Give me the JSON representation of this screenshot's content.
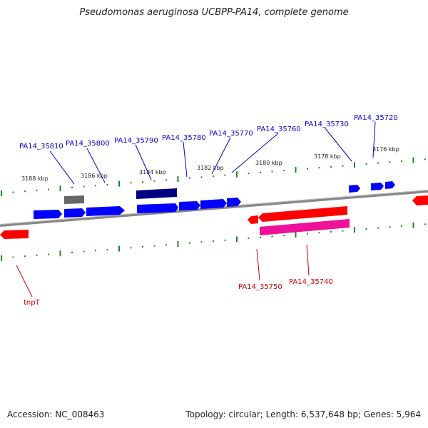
{
  "title": "Pseudomonas aeruginosa UCBPP-PA14, complete genome",
  "footer": {
    "accession": "Accession: NC_008463",
    "summary": "Topology: circular; Length: 6,537,648 bp; Genes: 5,964"
  },
  "colors": {
    "forward_gene": "#0000ff",
    "forward_dark": "#000080",
    "forward_grey": "#666666",
    "reverse_gene": "#ff0000",
    "reverse_pink": "#ee1199",
    "backbone": "#888888",
    "ticks": "#1a8c1a",
    "label_forward": "#0000cc",
    "label_reverse": "#cc0000"
  },
  "scale": {
    "forward_ticks": [
      "3188 kbp",
      "3186 kbp",
      "3184 kbp",
      "3182 kbp",
      "3180 kbp",
      "3178 kbp",
      "3176 kbp"
    ]
  },
  "genes": {
    "forward_labels": [
      "PA14_35810",
      "PA14_35800",
      "PA14_35790",
      "PA14_35780",
      "PA14_35770",
      "PA14_35760",
      "PA14_35730",
      "PA14_35720"
    ],
    "reverse_labels": [
      "tnpT",
      "PA14_35750",
      "PA14_35740"
    ]
  }
}
